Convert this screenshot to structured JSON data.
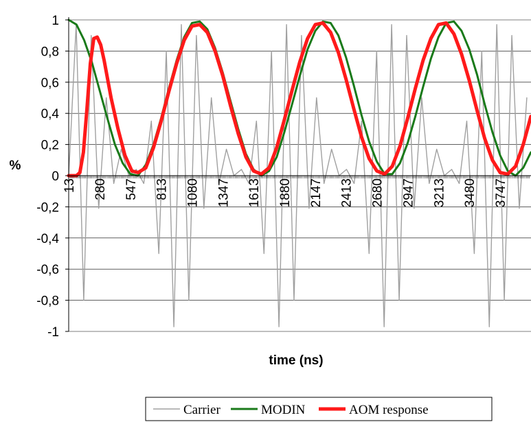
{
  "chart_data": {
    "type": "line",
    "xlabel": "time (ns)",
    "ylabel": "%",
    "x_range": [
      13,
      4014
    ],
    "ylim": [
      -1,
      1
    ],
    "y_ticks": [
      "1",
      "0,8",
      "0,6",
      "0,4",
      "0,2",
      "0",
      "-0,2",
      "-0,4",
      "-0,6",
      "-0,8",
      "-1"
    ],
    "y_tick_values": [
      1,
      0.8,
      0.6,
      0.4,
      0.2,
      0,
      -0.2,
      -0.4,
      -0.6,
      -0.8,
      -1
    ],
    "x_ticks": [
      "13",
      "280",
      "547",
      "813",
      "1080",
      "1347",
      "1613",
      "1880",
      "2147",
      "2413",
      "2680",
      "2947",
      "3213",
      "3480",
      "3747"
    ],
    "x_tick_values": [
      13,
      280,
      547,
      813,
      1080,
      1347,
      1613,
      1880,
      2147,
      2413,
      2680,
      2947,
      3213,
      3480,
      3747
    ],
    "grid": "horizontal",
    "legend_position": "bottom",
    "series": [
      {
        "name": "Carrier",
        "color": "#a0a0a0",
        "style": "thin",
        "x": [
          13,
          78,
          143,
          208,
          273,
          338,
          403,
          468,
          533,
          598,
          663,
          728,
          793,
          858,
          923,
          988,
          1053,
          1118,
          1183,
          1248,
          1313,
          1378,
          1443,
          1508,
          1573,
          1638,
          1703,
          1768,
          1833,
          1898,
          1963,
          2028,
          2093,
          2158,
          2223,
          2288,
          2353,
          2418,
          2483,
          2548,
          2613,
          2678,
          2743,
          2808,
          2873,
          2938,
          3003,
          3068,
          3133,
          3198,
          3263,
          3328,
          3393,
          3458,
          3523,
          3588,
          3653,
          3718,
          3783,
          3848,
          3913,
          3978
        ],
        "y": [
          0.0,
          0.97,
          -0.8,
          0.9,
          -0.21,
          0.5,
          -0.05,
          0.17,
          0.0,
          0.04,
          -0.05,
          0.35,
          -0.5,
          0.8,
          -0.97,
          0.97,
          -0.8,
          0.9,
          -0.21,
          0.5,
          -0.05,
          0.17,
          0.0,
          0.04,
          -0.05,
          0.35,
          -0.5,
          0.8,
          -0.97,
          0.97,
          -0.8,
          0.9,
          -0.21,
          0.5,
          -0.05,
          0.17,
          0.0,
          0.04,
          -0.05,
          0.35,
          -0.5,
          0.8,
          -0.97,
          0.97,
          -0.8,
          0.9,
          -0.21,
          0.5,
          -0.05,
          0.17,
          0.0,
          0.04,
          -0.05,
          0.35,
          -0.5,
          0.8,
          -0.97,
          0.97,
          -0.8,
          0.9,
          -0.21,
          0.5
        ]
      },
      {
        "name": "MODIN",
        "color": "#1a7a1a",
        "style": "medium",
        "x": [
          13,
          80,
          147,
          213,
          280,
          347,
          413,
          480,
          547,
          613,
          680,
          747,
          813,
          880,
          947,
          1013,
          1080,
          1147,
          1213,
          1280,
          1347,
          1413,
          1480,
          1547,
          1613,
          1680,
          1747,
          1813,
          1880,
          1947,
          2013,
          2080,
          2147,
          2213,
          2280,
          2347,
          2413,
          2480,
          2547,
          2613,
          2680,
          2747,
          2813,
          2880,
          2947,
          3013,
          3080,
          3147,
          3213,
          3280,
          3347,
          3413,
          3480,
          3547,
          3613,
          3680,
          3747,
          3813,
          3880,
          3947,
          4013
        ],
        "y": [
          1.0,
          0.97,
          0.87,
          0.73,
          0.55,
          0.37,
          0.2,
          0.08,
          0.01,
          0.0,
          0.07,
          0.2,
          0.37,
          0.56,
          0.74,
          0.89,
          0.98,
          0.99,
          0.94,
          0.82,
          0.66,
          0.48,
          0.3,
          0.14,
          0.04,
          0.0,
          0.03,
          0.12,
          0.28,
          0.46,
          0.64,
          0.81,
          0.93,
          0.99,
          0.98,
          0.9,
          0.76,
          0.58,
          0.39,
          0.22,
          0.09,
          0.01,
          0.01,
          0.08,
          0.21,
          0.38,
          0.57,
          0.75,
          0.89,
          0.98,
          0.99,
          0.93,
          0.81,
          0.65,
          0.46,
          0.28,
          0.13,
          0.03,
          0.0,
          0.05,
          0.15
        ]
      },
      {
        "name": "AOM response",
        "color": "#ff1a1a",
        "style": "thick",
        "x": [
          13,
          80,
          110,
          140,
          170,
          200,
          230,
          260,
          290,
          320,
          380,
          440,
          500,
          560,
          613,
          680,
          747,
          813,
          880,
          947,
          1013,
          1080,
          1147,
          1213,
          1280,
          1347,
          1413,
          1480,
          1547,
          1613,
          1680,
          1747,
          1813,
          1880,
          1947,
          2013,
          2080,
          2147,
          2213,
          2280,
          2347,
          2413,
          2480,
          2547,
          2613,
          2680,
          2747,
          2813,
          2880,
          2947,
          3013,
          3080,
          3147,
          3213,
          3280,
          3347,
          3413,
          3480,
          3547,
          3613,
          3680,
          3747,
          3813,
          3880,
          3947,
          4013
        ],
        "y": [
          0.0,
          0.0,
          0.02,
          0.15,
          0.42,
          0.72,
          0.88,
          0.89,
          0.84,
          0.74,
          0.5,
          0.3,
          0.13,
          0.03,
          0.02,
          0.05,
          0.18,
          0.35,
          0.54,
          0.72,
          0.87,
          0.96,
          0.97,
          0.92,
          0.8,
          0.64,
          0.45,
          0.27,
          0.12,
          0.03,
          0.01,
          0.05,
          0.18,
          0.36,
          0.55,
          0.73,
          0.88,
          0.97,
          0.98,
          0.92,
          0.79,
          0.62,
          0.43,
          0.25,
          0.11,
          0.03,
          0.01,
          0.06,
          0.19,
          0.37,
          0.56,
          0.74,
          0.88,
          0.97,
          0.98,
          0.91,
          0.78,
          0.61,
          0.42,
          0.24,
          0.1,
          0.02,
          0.01,
          0.06,
          0.2,
          0.38
        ]
      }
    ]
  }
}
